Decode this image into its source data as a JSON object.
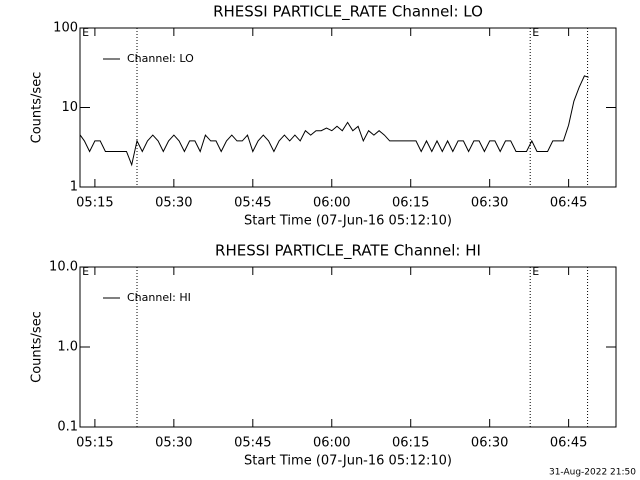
{
  "footer": "31-Aug-2022 21:50",
  "chart_data": [
    {
      "type": "line",
      "title": "RHESSI PARTICLE_RATE Channel: LO",
      "ylabel": "Counts/sec",
      "xlabel": "Start Time (07-Jun-16 05:12:10)",
      "log_y": true,
      "ylim": [
        1,
        100
      ],
      "yticks": [
        1,
        10,
        100
      ],
      "xlim": [
        312.17,
        414
      ],
      "xticks": [
        {
          "value": 315,
          "label": "05:15"
        },
        {
          "value": 330,
          "label": "05:30"
        },
        {
          "value": 345,
          "label": "05:45"
        },
        {
          "value": 360,
          "label": "06:00"
        },
        {
          "value": 375,
          "label": "06:15"
        },
        {
          "value": 390,
          "label": "06:30"
        },
        {
          "value": 405,
          "label": "06:45"
        }
      ],
      "vlines": [
        323,
        397.7,
        408.6
      ],
      "annotations": [
        {
          "text": "E",
          "x": 312.2
        },
        {
          "text": "E",
          "x": 397.7
        }
      ],
      "legend": "upper left",
      "series": [
        {
          "name": "Channel: LO",
          "color": "#000000",
          "x": [
            312.2,
            313,
            314,
            315,
            316,
            317,
            318,
            319,
            320,
            321,
            322,
            323,
            324,
            325,
            326,
            327,
            328,
            329,
            330,
            331,
            332,
            333,
            334,
            335,
            336,
            337,
            338,
            339,
            340,
            341,
            342,
            343,
            344,
            345,
            346,
            347,
            348,
            349,
            350,
            351,
            352,
            353,
            354,
            355,
            356,
            357,
            358,
            359,
            360,
            361,
            362,
            363,
            364,
            365,
            366,
            367,
            368,
            369,
            370,
            371,
            372,
            373,
            374,
            375,
            376,
            377,
            378,
            379,
            380,
            381,
            382,
            383,
            384,
            385,
            386,
            387,
            388,
            389,
            390,
            391,
            392,
            393,
            394,
            395,
            396,
            397,
            398,
            399,
            400,
            401,
            402,
            403,
            404,
            405,
            406,
            407,
            408,
            408.8
          ],
          "values": [
            4.5,
            3.8,
            2.8,
            3.8,
            3.8,
            2.8,
            2.8,
            2.8,
            2.8,
            2.8,
            1.9,
            3.8,
            2.8,
            3.8,
            4.5,
            3.8,
            2.8,
            3.8,
            4.5,
            3.8,
            2.8,
            3.8,
            3.8,
            2.8,
            4.5,
            3.8,
            3.8,
            2.8,
            3.8,
            4.5,
            3.8,
            3.8,
            4.5,
            2.8,
            3.8,
            4.5,
            3.8,
            2.8,
            3.8,
            4.5,
            3.8,
            4.5,
            3.8,
            5.1,
            4.5,
            5.1,
            5.1,
            5.5,
            5.1,
            5.8,
            5.1,
            6.5,
            5.1,
            5.8,
            3.8,
            5.1,
            4.5,
            5.1,
            4.5,
            3.8,
            3.8,
            3.8,
            3.8,
            3.8,
            3.8,
            2.8,
            3.8,
            2.8,
            3.8,
            2.8,
            3.8,
            2.8,
            3.8,
            3.8,
            2.8,
            3.8,
            3.8,
            2.8,
            3.8,
            3.8,
            2.8,
            3.8,
            3.8,
            2.8,
            2.8,
            2.8,
            3.8,
            2.8,
            2.8,
            2.8,
            3.8,
            3.8,
            3.8,
            6,
            12,
            18,
            25,
            24
          ]
        }
      ]
    },
    {
      "type": "line",
      "title": "RHESSI PARTICLE_RATE Channel: HI",
      "ylabel": "Counts/sec",
      "xlabel": "Start Time (07-Jun-16 05:12:10)",
      "log_y": true,
      "ylim": [
        0.1,
        10
      ],
      "yticks": [
        0.1,
        {
          "value": 1,
          "label": "1.0"
        },
        {
          "value": 10,
          "label": "10.0"
        }
      ],
      "xlim": [
        312.17,
        414
      ],
      "xticks": [
        {
          "value": 315,
          "label": "05:15"
        },
        {
          "value": 330,
          "label": "05:30"
        },
        {
          "value": 345,
          "label": "05:45"
        },
        {
          "value": 360,
          "label": "06:00"
        },
        {
          "value": 375,
          "label": "06:15"
        },
        {
          "value": 390,
          "label": "06:30"
        },
        {
          "value": 405,
          "label": "06:45"
        }
      ],
      "vlines": [
        323,
        397.7,
        408.6
      ],
      "annotations": [
        {
          "text": "E",
          "x": 312.2
        },
        {
          "text": "E",
          "x": 397.7
        }
      ],
      "legend": "upper left",
      "series": [
        {
          "name": "Channel: HI",
          "color": "#000000",
          "x": [],
          "values": []
        }
      ]
    }
  ]
}
